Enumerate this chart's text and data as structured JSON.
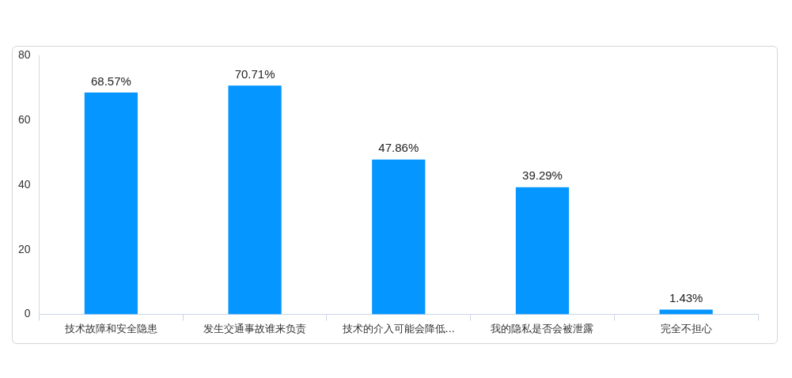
{
  "chart_data": {
    "type": "bar",
    "categories": [
      "技术故障和安全隐患",
      "发生交通事故谁来负责",
      "技术的介入可能会降低...",
      "我的隐私是否会被泄露",
      "完全不担心"
    ],
    "values": [
      68.57,
      70.71,
      47.86,
      39.29,
      1.43
    ],
    "value_labels": [
      "68.57%",
      "70.71%",
      "47.86%",
      "39.29%",
      "1.43%"
    ],
    "color": "#0596ff",
    "ylim": [
      0,
      80
    ],
    "yticks": [
      0,
      20,
      40,
      60,
      80
    ]
  }
}
